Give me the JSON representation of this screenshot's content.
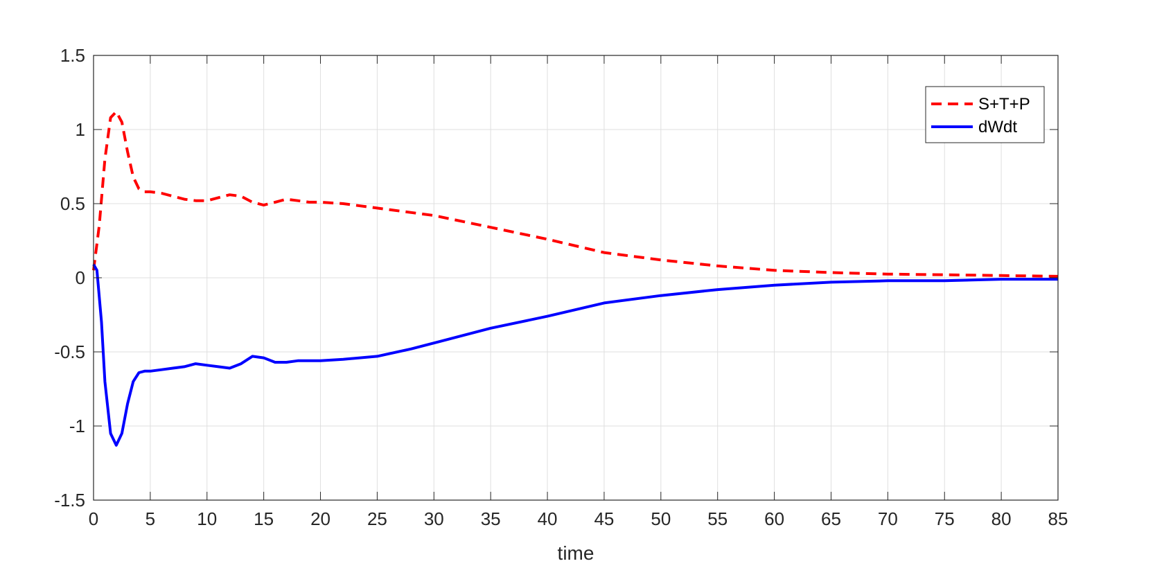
{
  "chart_data": {
    "type": "line",
    "title": "",
    "xlabel": "time",
    "ylabel": "",
    "xlim": [
      0,
      85
    ],
    "ylim": [
      -1.5,
      1.5
    ],
    "xticks": [
      0,
      5,
      10,
      15,
      20,
      25,
      30,
      35,
      40,
      45,
      50,
      55,
      60,
      65,
      70,
      75,
      80,
      85
    ],
    "xtick_labels": [
      "0",
      "5",
      "10",
      "15",
      "20",
      "25",
      "30",
      "35",
      "40",
      "45",
      "50",
      "55",
      "60",
      "65",
      "70",
      "75",
      "80",
      "85"
    ],
    "yticks": [
      -1.5,
      -1,
      -0.5,
      0,
      0.5,
      1,
      1.5
    ],
    "ytick_labels": [
      "-1.5",
      "-1",
      "-0.5",
      "0",
      "0.5",
      "1",
      "1.5"
    ],
    "grid": true,
    "legend_position": "top-right",
    "series": [
      {
        "name": "S+T+P",
        "color": "#ff0000",
        "style": "dashed",
        "x": [
          0,
          0.5,
          1,
          1.5,
          2,
          2.5,
          3,
          3.5,
          4,
          4.5,
          5,
          6,
          7,
          8,
          9,
          10,
          11,
          12,
          13,
          14,
          15,
          16,
          17,
          18,
          19,
          20,
          22,
          25,
          28,
          30,
          35,
          40,
          45,
          50,
          55,
          60,
          65,
          70,
          75,
          80,
          85
        ],
        "y": [
          0.05,
          0.35,
          0.8,
          1.08,
          1.12,
          1.05,
          0.85,
          0.68,
          0.6,
          0.58,
          0.58,
          0.57,
          0.55,
          0.53,
          0.52,
          0.52,
          0.54,
          0.56,
          0.55,
          0.51,
          0.49,
          0.51,
          0.53,
          0.52,
          0.51,
          0.51,
          0.5,
          0.47,
          0.44,
          0.42,
          0.34,
          0.26,
          0.17,
          0.12,
          0.08,
          0.05,
          0.035,
          0.025,
          0.02,
          0.015,
          0.01
        ]
      },
      {
        "name": "dWdt",
        "color": "#0000ff",
        "style": "solid",
        "x": [
          0,
          0.3,
          0.7,
          1,
          1.5,
          2,
          2.5,
          3,
          3.5,
          4,
          4.5,
          5,
          6,
          7,
          8,
          9,
          10,
          11,
          12,
          13,
          14,
          15,
          16,
          17,
          18,
          19,
          20,
          22,
          25,
          28,
          30,
          35,
          40,
          45,
          50,
          55,
          60,
          65,
          70,
          75,
          80,
          85
        ],
        "y": [
          0.09,
          0.05,
          -0.3,
          -0.7,
          -1.05,
          -1.13,
          -1.05,
          -0.85,
          -0.7,
          -0.64,
          -0.63,
          -0.63,
          -0.62,
          -0.61,
          -0.6,
          -0.58,
          -0.59,
          -0.6,
          -0.61,
          -0.58,
          -0.53,
          -0.54,
          -0.57,
          -0.57,
          -0.56,
          -0.56,
          -0.56,
          -0.55,
          -0.53,
          -0.48,
          -0.44,
          -0.34,
          -0.26,
          -0.17,
          -0.12,
          -0.08,
          -0.05,
          -0.03,
          -0.02,
          -0.02,
          -0.01,
          -0.01
        ]
      }
    ]
  }
}
